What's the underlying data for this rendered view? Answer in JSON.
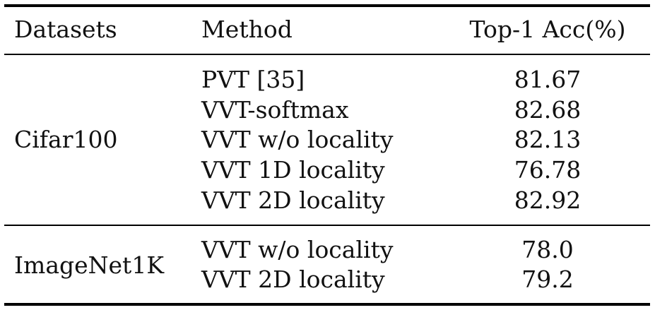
{
  "table": {
    "headers": {
      "datasets": "Datasets",
      "method": "Method",
      "accuracy": "Top-1 Acc(%)"
    },
    "groups": [
      {
        "dataset": "Cifar100",
        "rows": [
          {
            "method": "PVT [35]",
            "acc": "81.67"
          },
          {
            "method": "VVT-softmax",
            "acc": "82.68"
          },
          {
            "method": "VVT w/o locality",
            "acc": "82.13"
          },
          {
            "method": "VVT 1D locality",
            "acc": "76.78"
          },
          {
            "method": "VVT 2D locality",
            "acc": "82.92"
          }
        ]
      },
      {
        "dataset": "ImageNet1K",
        "rows": [
          {
            "method": "VVT w/o locality",
            "acc": "78.0"
          },
          {
            "method": "VVT 2D locality",
            "acc": "79.2"
          }
        ]
      }
    ]
  }
}
